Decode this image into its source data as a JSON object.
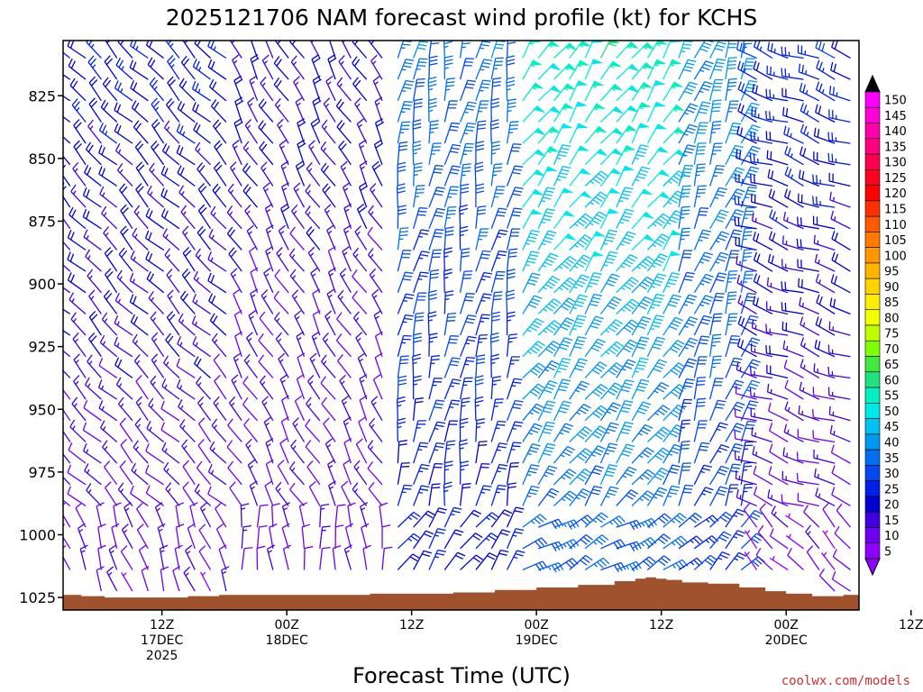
{
  "chart_data": {
    "type": "wind-barb-profile",
    "title": "2025121706 NAM forecast wind profile (kt) for KCHS",
    "xlabel": "Forecast Time (UTC)",
    "credit": "coolwx.com/models",
    "y_axis": {
      "quantity": "pressure (hPa)",
      "inverted": true,
      "range": [
        803,
        1030
      ],
      "ticks": [
        825,
        850,
        875,
        900,
        925,
        950,
        975,
        1000,
        1025
      ]
    },
    "x_axis": {
      "range_hours": [
        -3.5,
        73
      ],
      "ticks": [
        {
          "hour": 6,
          "label": [
            "12Z",
            "17DEC",
            "2025"
          ]
        },
        {
          "hour": 18,
          "label": [
            "00Z",
            "18DEC"
          ]
        },
        {
          "hour": 30,
          "label": [
            "12Z"
          ]
        },
        {
          "hour": 42,
          "label": [
            "00Z",
            "19DEC"
          ]
        },
        {
          "hour": 54,
          "label": [
            "12Z"
          ]
        },
        {
          "hour": 66,
          "label": [
            "00Z",
            "20DEC"
          ]
        },
        {
          "hour": 78,
          "label": [
            "12Z"
          ]
        }
      ]
    },
    "colorbar": {
      "labels": [
        150,
        145,
        140,
        135,
        130,
        125,
        120,
        115,
        110,
        105,
        100,
        95,
        90,
        85,
        80,
        75,
        70,
        65,
        60,
        55,
        50,
        45,
        40,
        35,
        30,
        25,
        20,
        15,
        10,
        5
      ],
      "colors": [
        "#ff00ff",
        "#ff00d8",
        "#ff00aa",
        "#ff0080",
        "#ff0050",
        "#ff0020",
        "#ff0000",
        "#ff3000",
        "#ff5a00",
        "#ff7a00",
        "#ff9600",
        "#ffb400",
        "#ffd200",
        "#ffee00",
        "#f4ff00",
        "#c0ff00",
        "#80ff00",
        "#40e840",
        "#20e080",
        "#00f0c0",
        "#00e8e8",
        "#00c0f0",
        "#0098f0",
        "#0070f0",
        "#0048f0",
        "#0020e8",
        "#0000d0",
        "#4000e0",
        "#7000f0",
        "#9000ff"
      ]
    },
    "wind_regimes": [
      {
        "hours": [
          -3.5,
          12
        ],
        "direction_deg": 315,
        "speed_kt": [
          10,
          22
        ],
        "note": "NW flow"
      },
      {
        "hours": [
          12,
          27
        ],
        "direction_deg": 330,
        "speed_kt": [
          10,
          18
        ]
      },
      {
        "hours": [
          27,
          40
        ],
        "direction_deg": 10,
        "speed_kt": [
          20,
          35
        ]
      },
      {
        "hours": [
          40,
          55
        ],
        "direction_deg": 35,
        "speed_kt": [
          30,
          55
        ]
      },
      {
        "hours": [
          55,
          62
        ],
        "direction_deg": 20,
        "speed_kt": [
          25,
          40
        ]
      },
      {
        "hours": [
          62,
          73
        ],
        "direction_deg": 290,
        "speed_kt": [
          8,
          25
        ]
      }
    ],
    "terrain": {
      "color": "#a0522d",
      "hours": [
        -3.5,
        0,
        1,
        4,
        7,
        10,
        13,
        16,
        20,
        24,
        28,
        32,
        36,
        40,
        44,
        48,
        51,
        52,
        53,
        54,
        55,
        57,
        60,
        63,
        65,
        67,
        70,
        73
      ],
      "pressure": [
        1024,
        1024.5,
        1025,
        1025,
        1025,
        1024.5,
        1024,
        1024,
        1024,
        1024,
        1023.5,
        1023.5,
        1023,
        1022,
        1021,
        1020,
        1018.5,
        1017.5,
        1017,
        1017.5,
        1018,
        1019,
        1019.5,
        1021,
        1022.5,
        1023.5,
        1024.5,
        1024
      ]
    }
  }
}
